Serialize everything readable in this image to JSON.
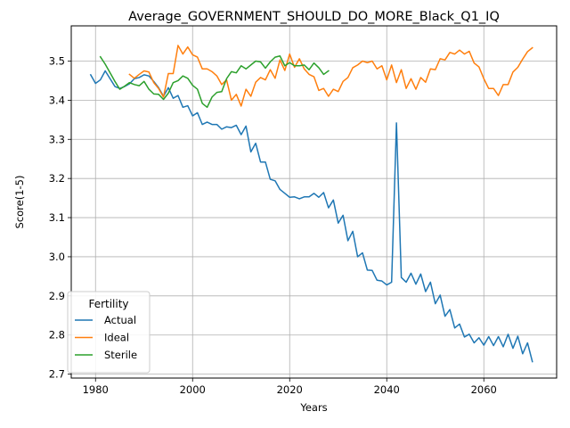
{
  "chart_data": {
    "type": "line",
    "title": "Average_GOVERNMENT_SHOULD_DO_MORE_Black_Q1_IQ",
    "xlabel": "Years",
    "ylabel": "Score(1-5)",
    "xlim": [
      1975,
      2075
    ],
    "ylim": [
      2.69,
      3.59
    ],
    "xticks": [
      1980,
      2000,
      2020,
      2040,
      2060
    ],
    "yticks": [
      2.7,
      2.8,
      2.9,
      3.0,
      3.1,
      3.2,
      3.3,
      3.4,
      3.5
    ],
    "grid": true,
    "legend": {
      "title": "Fertility",
      "position": "lower-left"
    },
    "series": [
      {
        "name": "Actual",
        "color": "#1f77b4",
        "x": [
          1979,
          1980,
          1981,
          1982,
          1983,
          1984,
          1985,
          1986,
          1987,
          1988,
          1989,
          1990,
          1991,
          1992,
          1993,
          1994,
          1995,
          1996,
          1997,
          1998,
          1999,
          2000,
          2001,
          2002,
          2003,
          2004,
          2005,
          2006,
          2007,
          2008,
          2009,
          2010,
          2011,
          2012,
          2013,
          2014,
          2015,
          2016,
          2017,
          2018,
          2019,
          2020,
          2021,
          2022,
          2023,
          2024,
          2025,
          2026,
          2027,
          2028,
          2029,
          2030,
          2031,
          2032,
          2033,
          2034,
          2035,
          2036,
          2037,
          2038,
          2039,
          2040,
          2041,
          2042,
          2043,
          2044,
          2045,
          2046,
          2047,
          2048,
          2049,
          2050,
          2051,
          2052,
          2053,
          2054,
          2055,
          2056,
          2057,
          2058,
          2059,
          2060,
          2061,
          2062,
          2063,
          2064,
          2065,
          2066,
          2067,
          2068,
          2069,
          2070
        ],
        "values": [
          3.465,
          3.443,
          3.452,
          3.475,
          3.455,
          3.435,
          3.43,
          3.435,
          3.442,
          3.455,
          3.458,
          3.465,
          3.462,
          3.448,
          3.432,
          3.41,
          3.432,
          3.405,
          3.412,
          3.382,
          3.386,
          3.36,
          3.368,
          3.338,
          3.344,
          3.338,
          3.338,
          3.326,
          3.332,
          3.33,
          3.336,
          3.312,
          3.334,
          3.268,
          3.29,
          3.242,
          3.242,
          3.198,
          3.194,
          3.172,
          3.162,
          3.152,
          3.153,
          3.148,
          3.153,
          3.153,
          3.162,
          3.152,
          3.164,
          3.125,
          3.145,
          3.086,
          3.106,
          3.041,
          3.065,
          3.0,
          3.01,
          2.966,
          2.965,
          2.94,
          2.938,
          2.928,
          2.935,
          3.342,
          2.947,
          2.935,
          2.958,
          2.93,
          2.956,
          2.911,
          2.935,
          2.88,
          2.902,
          2.848,
          2.865,
          2.818,
          2.828,
          2.795,
          2.802,
          2.78,
          2.793,
          2.774,
          2.796,
          2.773,
          2.796,
          2.77,
          2.802,
          2.766,
          2.797,
          2.752,
          2.78,
          2.732
        ]
      },
      {
        "name": "Ideal",
        "color": "#ff7f0e",
        "x": [
          1987,
          1988,
          1989,
          1990,
          1991,
          1992,
          1993,
          1994,
          1995,
          1996,
          1997,
          1998,
          1999,
          2000,
          2001,
          2002,
          2003,
          2004,
          2005,
          2006,
          2007,
          2008,
          2009,
          2010,
          2011,
          2012,
          2013,
          2014,
          2015,
          2016,
          2017,
          2018,
          2019,
          2020,
          2021,
          2022,
          2023,
          2024,
          2025,
          2026,
          2027,
          2028,
          2029,
          2030,
          2031,
          2032,
          2033,
          2034,
          2035,
          2036,
          2037,
          2038,
          2039,
          2040,
          2041,
          2042,
          2043,
          2044,
          2045,
          2046,
          2047,
          2048,
          2049,
          2050,
          2051,
          2052,
          2053,
          2054,
          2055,
          2056,
          2057,
          2058,
          2059,
          2060,
          2061,
          2062,
          2063,
          2064,
          2065,
          2066,
          2067,
          2068,
          2069,
          2070
        ],
        "values": [
          3.466,
          3.456,
          3.466,
          3.475,
          3.472,
          3.445,
          3.43,
          3.408,
          3.468,
          3.468,
          3.54,
          3.518,
          3.536,
          3.516,
          3.51,
          3.48,
          3.48,
          3.473,
          3.462,
          3.44,
          3.452,
          3.4,
          3.415,
          3.385,
          3.428,
          3.41,
          3.446,
          3.458,
          3.452,
          3.478,
          3.456,
          3.503,
          3.476,
          3.518,
          3.484,
          3.506,
          3.48,
          3.466,
          3.46,
          3.425,
          3.43,
          3.41,
          3.428,
          3.422,
          3.448,
          3.458,
          3.483,
          3.49,
          3.5,
          3.496,
          3.5,
          3.48,
          3.488,
          3.452,
          3.49,
          3.445,
          3.478,
          3.43,
          3.455,
          3.428,
          3.458,
          3.446,
          3.48,
          3.478,
          3.506,
          3.503,
          3.522,
          3.518,
          3.528,
          3.518,
          3.525,
          3.495,
          3.485,
          3.455,
          3.43,
          3.43,
          3.412,
          3.44,
          3.44,
          3.472,
          3.484,
          3.505,
          3.524,
          3.534
        ]
      },
      {
        "name": "Sterile",
        "color": "#2ca02c",
        "x": [
          1981,
          1982,
          1983,
          1984,
          1985,
          1986,
          1987,
          1988,
          1989,
          1990,
          1991,
          1992,
          1993,
          1994,
          1995,
          1996,
          1997,
          1998,
          1999,
          2000,
          2001,
          2002,
          2003,
          2004,
          2005,
          2006,
          2007,
          2008,
          2009,
          2010,
          2011,
          2012,
          2013,
          2014,
          2015,
          2016,
          2017,
          2018,
          2019,
          2020,
          2021,
          2022,
          2023,
          2024,
          2025,
          2026,
          2027,
          2028
        ],
        "values": [
          3.511,
          3.492,
          3.47,
          3.448,
          3.428,
          3.436,
          3.445,
          3.44,
          3.437,
          3.448,
          3.428,
          3.416,
          3.415,
          3.402,
          3.418,
          3.445,
          3.45,
          3.462,
          3.456,
          3.438,
          3.428,
          3.392,
          3.382,
          3.408,
          3.42,
          3.422,
          3.455,
          3.473,
          3.47,
          3.488,
          3.48,
          3.49,
          3.5,
          3.498,
          3.482,
          3.498,
          3.51,
          3.513,
          3.488,
          3.496,
          3.488,
          3.488,
          3.49,
          3.478,
          3.495,
          3.483,
          3.466,
          3.475
        ]
      }
    ]
  }
}
